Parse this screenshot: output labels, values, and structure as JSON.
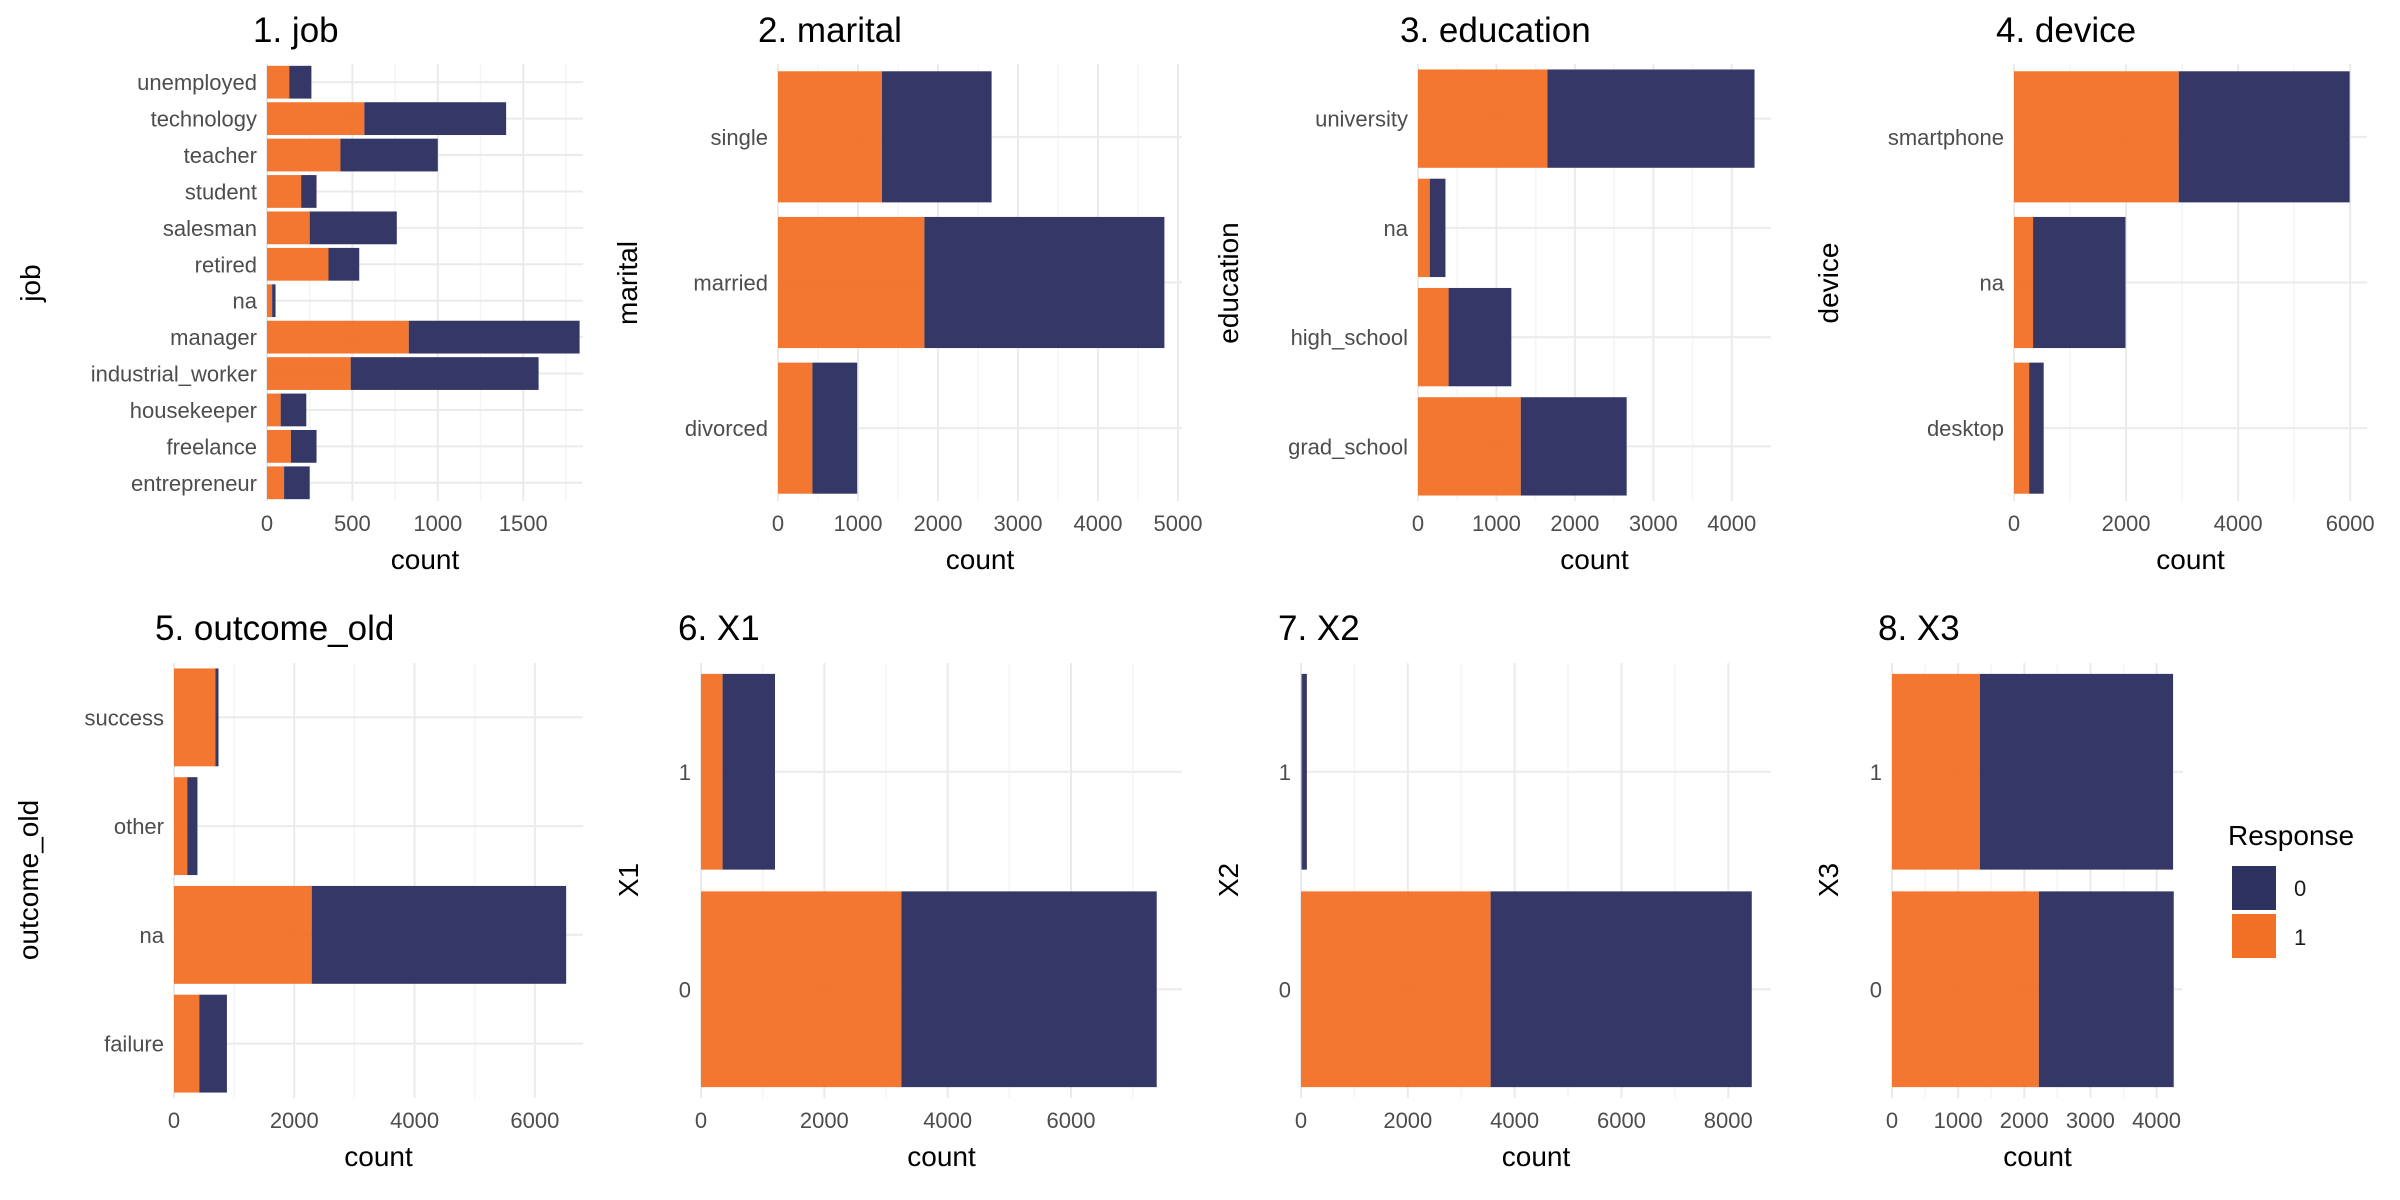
{
  "colors": {
    "response_0": "#2e3261",
    "response_1": "#f26f26",
    "grid_major": "#ebebeb",
    "grid_minor": "#f5f5f5"
  },
  "legend": {
    "title": "Response",
    "items": [
      {
        "label": "0",
        "color": "#2e3261"
      },
      {
        "label": "1",
        "color": "#f26f26"
      }
    ],
    "position": "right"
  },
  "chart_data": [
    {
      "type": "bar",
      "orientation": "horizontal",
      "stacked": true,
      "title": "1. job",
      "xlabel": "count",
      "ylabel": "job",
      "categories": [
        "entrepreneur",
        "freelance",
        "housekeeper",
        "industrial_worker",
        "manager",
        "na",
        "retired",
        "salesman",
        "student",
        "teacher",
        "technology",
        "unemployed"
      ],
      "series": [
        {
          "name": "0",
          "values": [
            150,
            150,
            150,
            1100,
            1000,
            20,
            180,
            510,
            90,
            570,
            830,
            130
          ]
        },
        {
          "name": "1",
          "values": [
            100,
            140,
            80,
            490,
            830,
            30,
            360,
            250,
            200,
            430,
            570,
            130
          ]
        }
      ],
      "xlim": [
        0,
        1850
      ],
      "xticks": [
        0,
        500,
        1000,
        1500
      ]
    },
    {
      "type": "bar",
      "orientation": "horizontal",
      "stacked": true,
      "title": "2. marital",
      "xlabel": "count",
      "ylabel": "marital",
      "categories": [
        "divorced",
        "married",
        "single"
      ],
      "series": [
        {
          "name": "0",
          "values": [
            560,
            3000,
            1370
          ]
        },
        {
          "name": "1",
          "values": [
            430,
            1830,
            1300
          ]
        }
      ],
      "xlim": [
        0,
        5050
      ],
      "xticks": [
        0,
        1000,
        2000,
        3000,
        4000,
        5000
      ]
    },
    {
      "type": "bar",
      "orientation": "horizontal",
      "stacked": true,
      "title": "3. education",
      "xlabel": "count",
      "ylabel": "education",
      "categories": [
        "grad_school",
        "high_school",
        "na",
        "university"
      ],
      "series": [
        {
          "name": "0",
          "values": [
            1350,
            800,
            200,
            2640
          ]
        },
        {
          "name": "1",
          "values": [
            1310,
            390,
            150,
            1650
          ]
        }
      ],
      "xlim": [
        0,
        4500
      ],
      "xticks": [
        0,
        1000,
        2000,
        3000,
        4000
      ]
    },
    {
      "type": "bar",
      "orientation": "horizontal",
      "stacked": true,
      "title": "4. device",
      "xlabel": "count",
      "ylabel": "device",
      "categories": [
        "desktop",
        "na",
        "smartphone"
      ],
      "series": [
        {
          "name": "0",
          "values": [
            260,
            1650,
            3050
          ]
        },
        {
          "name": "1",
          "values": [
            270,
            340,
            2940
          ]
        }
      ],
      "xlim": [
        0,
        6300
      ],
      "xticks": [
        0,
        2000,
        4000,
        6000
      ]
    },
    {
      "type": "bar",
      "orientation": "horizontal",
      "stacked": true,
      "title": "5. outcome_old",
      "xlabel": "count",
      "ylabel": "outcome_old",
      "categories": [
        "failure",
        "na",
        "other",
        "success"
      ],
      "series": [
        {
          "name": "0",
          "values": [
            460,
            4230,
            170,
            50
          ]
        },
        {
          "name": "1",
          "values": [
            420,
            2290,
            220,
            690
          ]
        }
      ],
      "xlim": [
        0,
        6800
      ],
      "xticks": [
        0,
        2000,
        4000,
        6000
      ]
    },
    {
      "type": "bar",
      "orientation": "horizontal",
      "stacked": true,
      "title": "6. X1",
      "xlabel": "count",
      "ylabel": "X1",
      "categories": [
        "0",
        "1"
      ],
      "series": [
        {
          "name": "0",
          "values": [
            4140,
            850
          ]
        },
        {
          "name": "1",
          "values": [
            3250,
            350
          ]
        }
      ],
      "xlim": [
        0,
        7800
      ],
      "xticks": [
        0,
        2000,
        4000,
        6000
      ]
    },
    {
      "type": "bar",
      "orientation": "horizontal",
      "stacked": true,
      "title": "7. X2",
      "xlabel": "count",
      "ylabel": "X2",
      "categories": [
        "0",
        "1"
      ],
      "series": [
        {
          "name": "0",
          "values": [
            4890,
            90
          ]
        },
        {
          "name": "1",
          "values": [
            3550,
            20
          ]
        }
      ],
      "xlim": [
        0,
        8800
      ],
      "xticks": [
        0,
        2000,
        4000,
        6000,
        8000
      ]
    },
    {
      "type": "bar",
      "orientation": "horizontal",
      "stacked": true,
      "title": "8. X3",
      "xlabel": "count",
      "ylabel": "X3",
      "categories": [
        "0",
        "1"
      ],
      "series": [
        {
          "name": "0",
          "values": [
            2040,
            2920
          ]
        },
        {
          "name": "1",
          "values": [
            2220,
            1330
          ]
        }
      ],
      "xlim": [
        0,
        4400
      ],
      "xticks": [
        0,
        1000,
        2000,
        3000,
        4000
      ]
    }
  ]
}
